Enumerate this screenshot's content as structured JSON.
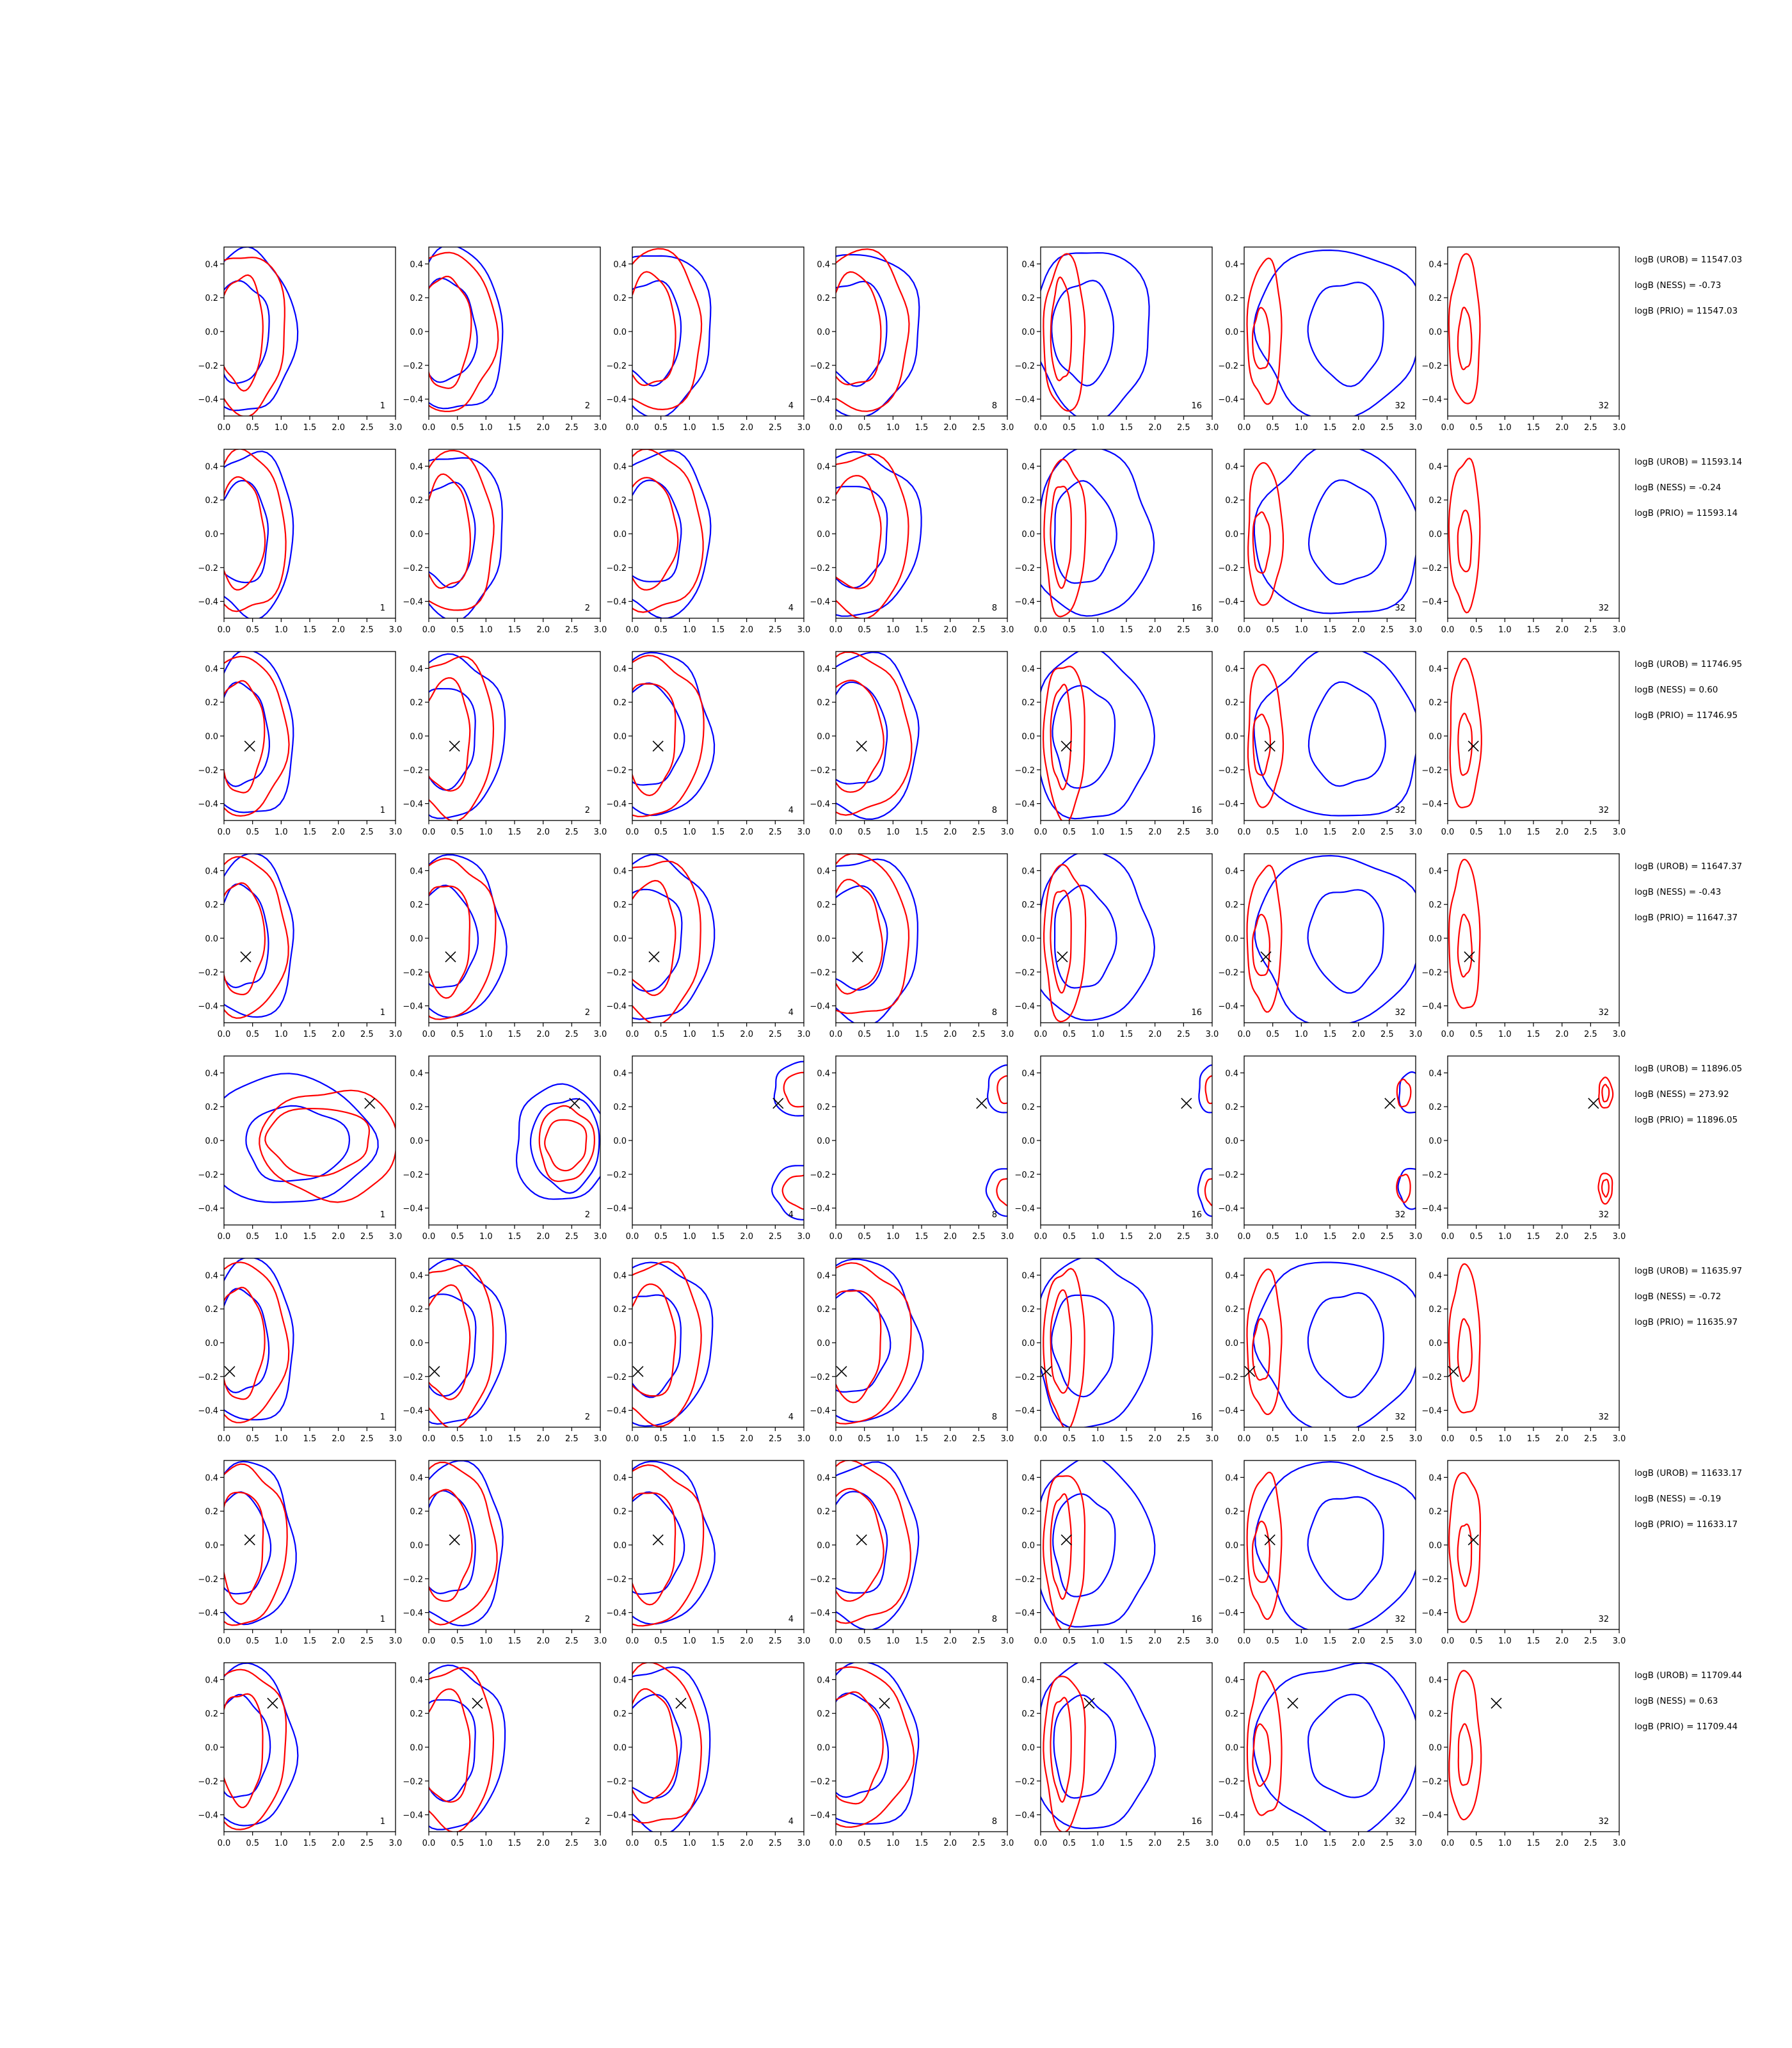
{
  "chart_data": {
    "type": "contour-grid",
    "xlim": [
      0.0,
      3.0
    ],
    "ylim": [
      -0.5,
      0.5
    ],
    "x_ticks": [
      "0.0",
      "0.5",
      "1.0",
      "1.5",
      "2.0",
      "2.5",
      "3.0"
    ],
    "y_ticks": [
      "0.4",
      "0.2",
      "0.0",
      "−0.2",
      "−0.4"
    ],
    "columns": [
      "1",
      "2",
      "4",
      "8",
      "16",
      "32",
      "32"
    ],
    "series_colors": {
      "blue": "#0000ff",
      "red": "#ff0000",
      "marker": "#000000"
    },
    "rows": [
      {
        "marker": null,
        "stats": [
          "logB (UROB) = 11547.03",
          "logB (NESS) = -0.73",
          "logB (PRIO) = 11547.03"
        ]
      },
      {
        "marker": null,
        "stats": [
          "logB (UROB) = 11593.14",
          "logB (NESS) = -0.24",
          "logB (PRIO) = 11593.14"
        ]
      },
      {
        "marker": [
          0.45,
          -0.06
        ],
        "stats": [
          "logB (UROB) = 11746.95",
          "logB (NESS) = 0.60",
          "logB (PRIO) = 11746.95"
        ]
      },
      {
        "marker": [
          0.38,
          -0.11
        ],
        "stats": [
          "logB (UROB) = 11647.37",
          "logB (NESS) = -0.43",
          "logB (PRIO) = 11647.37"
        ]
      },
      {
        "marker": [
          2.55,
          0.22
        ],
        "stats": [
          "logB (UROB) = 11896.05",
          "logB (NESS) = 273.92",
          "logB (PRIO) = 11896.05"
        ]
      },
      {
        "marker": [
          0.1,
          -0.17
        ],
        "stats": [
          "logB (UROB) = 11635.97",
          "logB (NESS) = -0.72",
          "logB (PRIO) = 11635.97"
        ]
      },
      {
        "marker": [
          0.45,
          0.03
        ],
        "stats": [
          "logB (UROB) = 11633.17",
          "logB (NESS) = -0.19",
          "logB (PRIO) = 11633.17"
        ]
      },
      {
        "marker": [
          0.85,
          0.26
        ],
        "stats": [
          "logB (UROB) = 11709.44",
          "logB (NESS) = 0.63",
          "logB (PRIO) = 11709.44"
        ]
      }
    ]
  }
}
